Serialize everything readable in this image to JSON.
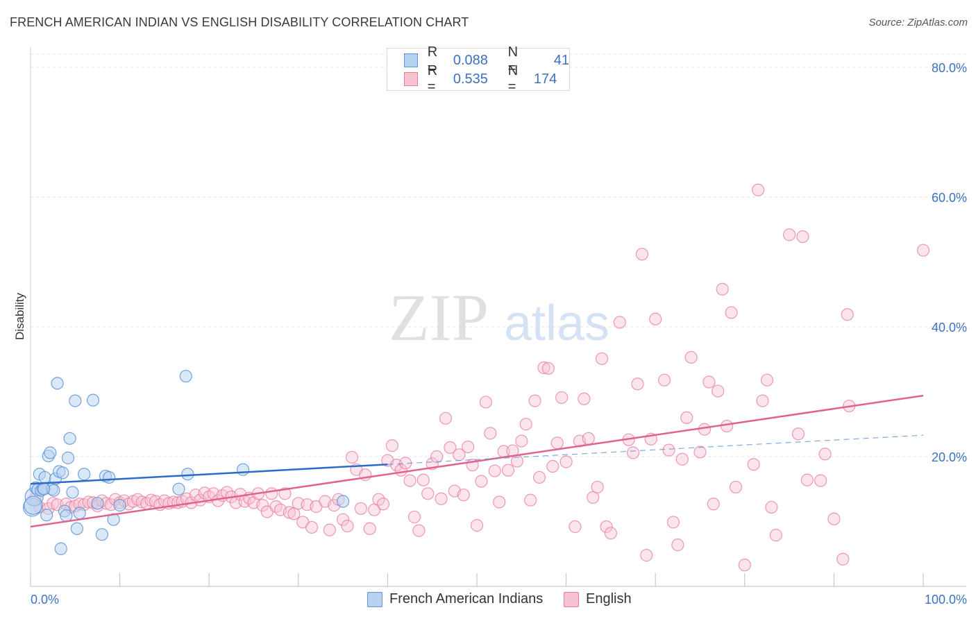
{
  "title": "FRENCH AMERICAN INDIAN VS ENGLISH DISABILITY CORRELATION CHART",
  "source": "Source: ZipAtlas.com",
  "watermark": {
    "zip": "ZIP",
    "atlas": "atlas"
  },
  "colors": {
    "blue": "#5b93d6",
    "blue_fill": "#b7d2f1",
    "blue_line": "#2a6cc7",
    "pink": "#e8789c",
    "pink_fill": "#f6c3d3",
    "pink_line": "#e0628d",
    "tick_label": "#3a72c0",
    "grid": "#e2e2e2"
  },
  "legend": {
    "r_label": "R =",
    "n_label": "N =",
    "rows": [
      {
        "r": "0.088",
        "n": "41"
      },
      {
        "r": "0.535",
        "n": "174"
      }
    ]
  },
  "chart_data": {
    "type": "scatter",
    "xlabel": "",
    "ylabel": "Disability",
    "xlim": [
      0,
      100
    ],
    "ylim": [
      0,
      82
    ],
    "x_tick_labels": [
      "0.0%",
      "100.0%"
    ],
    "y_ticks": [
      20,
      40,
      60,
      80
    ],
    "y_tick_labels": [
      "20.0%",
      "40.0%",
      "60.0%",
      "80.0%"
    ],
    "series": [
      {
        "name": "French American Indians",
        "r": 0.088,
        "n": 41,
        "trend": {
          "x0": 0,
          "y0": 15.8,
          "x1": 40,
          "y1": 18.8,
          "dash_x1": 100,
          "dash_y1": 23.3
        },
        "points": [
          [
            0.2,
            12.2
          ],
          [
            0.4,
            13.8
          ],
          [
            0.6,
            15.2
          ],
          [
            0.8,
            14.9
          ],
          [
            1,
            17.3
          ],
          [
            1.2,
            14.8
          ],
          [
            1.4,
            15.1
          ],
          [
            1.6,
            16.8
          ],
          [
            1.8,
            11.0
          ],
          [
            2,
            20.1
          ],
          [
            2.2,
            20.6
          ],
          [
            2.4,
            15.0
          ],
          [
            2.6,
            14.8
          ],
          [
            2.8,
            16.6
          ],
          [
            3,
            31.3
          ],
          [
            3.2,
            17.7
          ],
          [
            3.4,
            5.8
          ],
          [
            3.6,
            17.5
          ],
          [
            3.8,
            11.6
          ],
          [
            4,
            10.9
          ],
          [
            4.2,
            19.8
          ],
          [
            4.4,
            22.8
          ],
          [
            4.7,
            14.5
          ],
          [
            5,
            28.6
          ],
          [
            5.2,
            8.9
          ],
          [
            5.5,
            11.3
          ],
          [
            6,
            17.3
          ],
          [
            7,
            28.7
          ],
          [
            7.5,
            12.8
          ],
          [
            8,
            8.0
          ],
          [
            8.4,
            17.0
          ],
          [
            8.8,
            16.8
          ],
          [
            9.3,
            10.3
          ],
          [
            10,
            12.5
          ],
          [
            16.6,
            15.0
          ],
          [
            17.4,
            32.4
          ],
          [
            17.6,
            17.3
          ],
          [
            23.8,
            18.0
          ],
          [
            35,
            13.1
          ],
          [
            0.3,
            12.5
          ],
          [
            1.5,
            15.0
          ]
        ]
      },
      {
        "name": "English",
        "r": 0.535,
        "n": 174,
        "trend": {
          "x0": 0,
          "y0": 9.2,
          "x1": 100,
          "y1": 29.4
        },
        "points": [
          [
            0.5,
            13.5
          ],
          [
            1,
            12.2
          ],
          [
            2,
            12.0
          ],
          [
            2.5,
            12.8
          ],
          [
            3,
            12.6
          ],
          [
            4,
            12.7
          ],
          [
            4.5,
            12.2
          ],
          [
            5,
            12.4
          ],
          [
            5.5,
            12.7
          ],
          [
            6,
            12.6
          ],
          [
            6.5,
            13.0
          ],
          [
            7,
            12.9
          ],
          [
            7.5,
            12.4
          ],
          [
            8,
            13.2
          ],
          [
            8.5,
            12.8
          ],
          [
            9,
            12.6
          ],
          [
            9.5,
            13.4
          ],
          [
            10,
            12.9
          ],
          [
            10.5,
            13.2
          ],
          [
            11,
            12.7
          ],
          [
            11.5,
            13.1
          ],
          [
            12,
            13.4
          ],
          [
            12.5,
            13.0
          ],
          [
            13,
            12.8
          ],
          [
            13.5,
            13.3
          ],
          [
            14,
            13.1
          ],
          [
            14.5,
            12.6
          ],
          [
            15,
            13.2
          ],
          [
            15.5,
            12.8
          ],
          [
            16,
            13.0
          ],
          [
            16.5,
            12.9
          ],
          [
            17,
            13.1
          ],
          [
            17.5,
            13.5
          ],
          [
            18,
            12.9
          ],
          [
            18.5,
            14.1
          ],
          [
            19,
            13.3
          ],
          [
            19.5,
            14.4
          ],
          [
            20,
            13.8
          ],
          [
            20.5,
            14.3
          ],
          [
            21,
            13.2
          ],
          [
            21.5,
            14.0
          ],
          [
            22,
            14.5
          ],
          [
            22.5,
            13.8
          ],
          [
            23,
            12.9
          ],
          [
            23.5,
            14.2
          ],
          [
            24,
            13.1
          ],
          [
            24.5,
            13.6
          ],
          [
            25,
            12.9
          ],
          [
            25.5,
            14.3
          ],
          [
            26,
            12.5
          ],
          [
            26.5,
            11.5
          ],
          [
            27,
            14.3
          ],
          [
            27.5,
            12.3
          ],
          [
            28,
            11.8
          ],
          [
            28.5,
            14.3
          ],
          [
            29,
            11.4
          ],
          [
            29.5,
            11.2
          ],
          [
            30,
            12.8
          ],
          [
            30.5,
            9.9
          ],
          [
            31,
            12.6
          ],
          [
            31.5,
            9.1
          ],
          [
            32,
            12.3
          ],
          [
            33,
            13.1
          ],
          [
            33.5,
            8.7
          ],
          [
            34,
            12.5
          ],
          [
            34.5,
            13.4
          ],
          [
            35,
            10.3
          ],
          [
            35.5,
            9.3
          ],
          [
            36,
            19.9
          ],
          [
            36.5,
            18.0
          ],
          [
            37,
            12.0
          ],
          [
            37.5,
            17.2
          ],
          [
            38,
            8.9
          ],
          [
            38.5,
            11.8
          ],
          [
            39,
            13.4
          ],
          [
            39.5,
            12.7
          ],
          [
            40,
            19.4
          ],
          [
            40.5,
            21.7
          ],
          [
            41,
            18.7
          ],
          [
            41.5,
            17.9
          ],
          [
            42,
            19.0
          ],
          [
            42.5,
            16.3
          ],
          [
            43,
            10.7
          ],
          [
            43.5,
            8.6
          ],
          [
            44,
            16.4
          ],
          [
            44.5,
            14.3
          ],
          [
            45,
            18.9
          ],
          [
            45.5,
            20.0
          ],
          [
            46,
            13.5
          ],
          [
            46.5,
            25.9
          ],
          [
            47,
            21.4
          ],
          [
            47.5,
            14.7
          ],
          [
            48,
            20.3
          ],
          [
            48.5,
            14.1
          ],
          [
            49,
            21.5
          ],
          [
            49.5,
            18.7
          ],
          [
            50,
            9.4
          ],
          [
            50.5,
            16.2
          ],
          [
            51,
            28.4
          ],
          [
            51.5,
            23.6
          ],
          [
            52,
            17.8
          ],
          [
            52.5,
            13.0
          ],
          [
            53,
            20.8
          ],
          [
            53.5,
            17.9
          ],
          [
            54,
            20.9
          ],
          [
            54.5,
            19.3
          ],
          [
            55,
            22.4
          ],
          [
            55.5,
            25.0
          ],
          [
            56,
            13.3
          ],
          [
            56.5,
            28.6
          ],
          [
            57,
            16.8
          ],
          [
            57.5,
            33.7
          ],
          [
            58,
            33.6
          ],
          [
            58.5,
            18.5
          ],
          [
            59,
            22.1
          ],
          [
            59.5,
            29.1
          ],
          [
            60,
            19.2
          ],
          [
            61,
            9.2
          ],
          [
            61.5,
            22.4
          ],
          [
            62,
            28.9
          ],
          [
            62.5,
            22.8
          ],
          [
            63,
            13.7
          ],
          [
            63.5,
            15.3
          ],
          [
            64,
            35.1
          ],
          [
            64.5,
            9.2
          ],
          [
            65,
            8.2
          ],
          [
            66,
            40.7
          ],
          [
            67,
            22.6
          ],
          [
            67.5,
            20.6
          ],
          [
            68,
            31.2
          ],
          [
            68.5,
            51.2
          ],
          [
            69,
            4.8
          ],
          [
            69.5,
            22.7
          ],
          [
            70,
            41.2
          ],
          [
            71,
            31.8
          ],
          [
            71.5,
            21.0
          ],
          [
            72,
            9.9
          ],
          [
            72.5,
            6.4
          ],
          [
            73,
            19.6
          ],
          [
            73.5,
            26.0
          ],
          [
            74,
            35.3
          ],
          [
            75,
            20.7
          ],
          [
            75.5,
            24.2
          ],
          [
            76,
            31.5
          ],
          [
            76.5,
            12.7
          ],
          [
            77,
            30.1
          ],
          [
            77.5,
            45.8
          ],
          [
            78,
            24.7
          ],
          [
            78.5,
            42.2
          ],
          [
            79,
            15.3
          ],
          [
            80,
            3.3
          ],
          [
            81,
            18.8
          ],
          [
            81.5,
            61.1
          ],
          [
            82,
            28.6
          ],
          [
            82.5,
            31.8
          ],
          [
            83,
            12.2
          ],
          [
            83.5,
            7.9
          ],
          [
            85,
            54.2
          ],
          [
            86,
            23.5
          ],
          [
            86.5,
            53.9
          ],
          [
            87,
            16.4
          ],
          [
            88.5,
            16.3
          ],
          [
            90,
            10.4
          ],
          [
            91,
            4.2
          ],
          [
            91.5,
            41.9
          ],
          [
            91.7,
            27.8
          ],
          [
            100,
            51.8
          ],
          [
            89,
            20.4
          ]
        ]
      }
    ]
  }
}
